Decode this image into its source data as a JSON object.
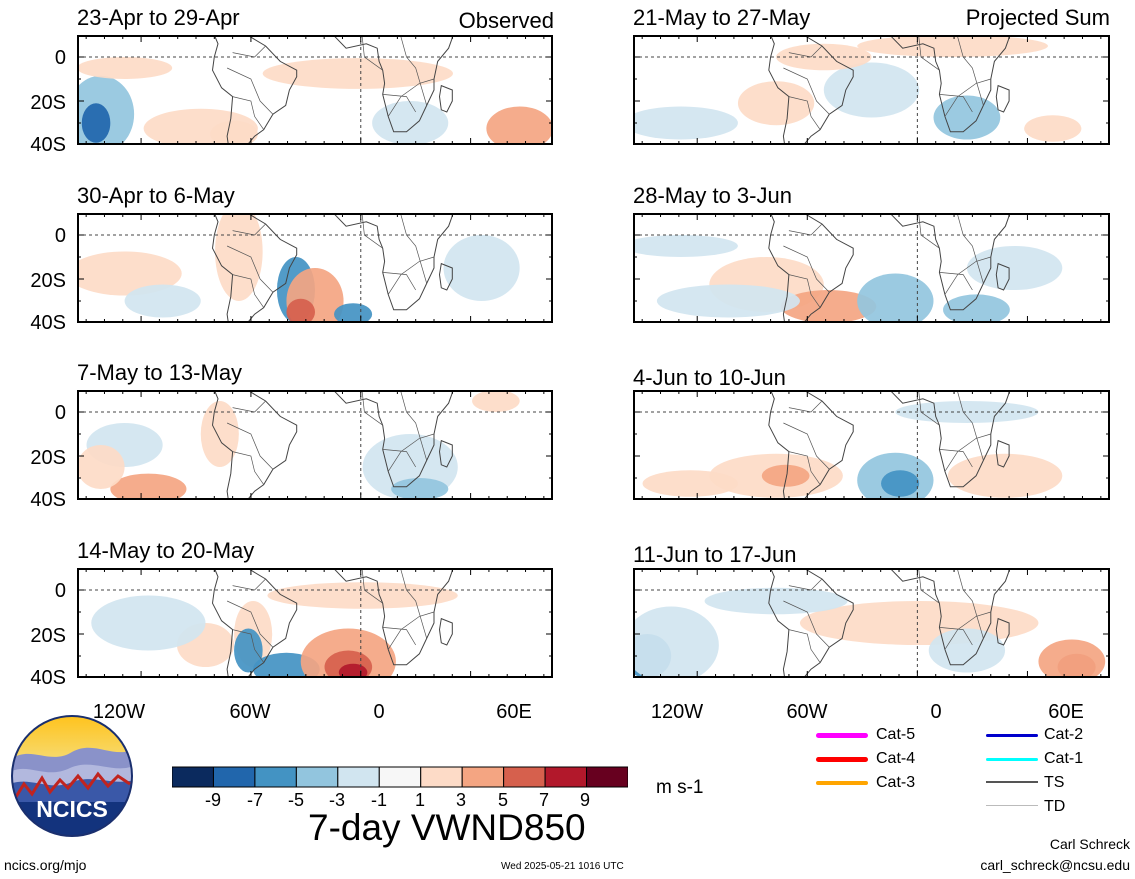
{
  "panels": [
    {
      "title": "23-Apr to 29-Apr",
      "tag": "Observed"
    },
    {
      "title": "21-May to 27-May",
      "tag": "Projected Sum"
    },
    {
      "title": "30-Apr to 6-May",
      "tag": ""
    },
    {
      "title": "28-May to 3-Jun",
      "tag": ""
    },
    {
      "title": "7-May to 13-May",
      "tag": ""
    },
    {
      "title": "4-Jun to 10-Jun",
      "tag": ""
    },
    {
      "title": "14-May to 20-May",
      "tag": ""
    },
    {
      "title": "11-Jun to 17-Jun",
      "tag": ""
    }
  ],
  "map_axes": {
    "lat_labels": [
      "0",
      "20S",
      "40S"
    ],
    "lon_labels": [
      "120W",
      "60W",
      "0",
      "60E"
    ]
  },
  "colorbar": {
    "labels": [
      "-9",
      "-7",
      "-5",
      "-3",
      "-1",
      "1",
      "3",
      "5",
      "7",
      "9"
    ],
    "colors": [
      "#0b2a5e",
      "#2166ac",
      "#4393c3",
      "#92c5de",
      "#d1e5f0",
      "#f7f7f7",
      "#fddbc7",
      "#f4a582",
      "#d6604d",
      "#b2182b",
      "#67001f"
    ],
    "units": "m s-1",
    "title": "7-day VWND850"
  },
  "legend": [
    {
      "label": "Cat-5",
      "color": "#ff00ff"
    },
    {
      "label": "Cat-2",
      "color": "#0000cc"
    },
    {
      "label": "Cat-4",
      "color": "#ff0000"
    },
    {
      "label": "Cat-1",
      "color": "#00ffff"
    },
    {
      "label": "Cat-3",
      "color": "#ffa500"
    },
    {
      "label": "TS",
      "color": "#555555"
    },
    {
      "label": "TD",
      "color": "#bbbbbb"
    }
  ],
  "logo": {
    "text": "NCICS"
  },
  "footer": {
    "left": "ncics.org/mjo",
    "center": "Wed 2025-05-21 1016 UTC",
    "author": "Carl Schreck",
    "email": "carl_schreck@ncsu.edu"
  }
}
